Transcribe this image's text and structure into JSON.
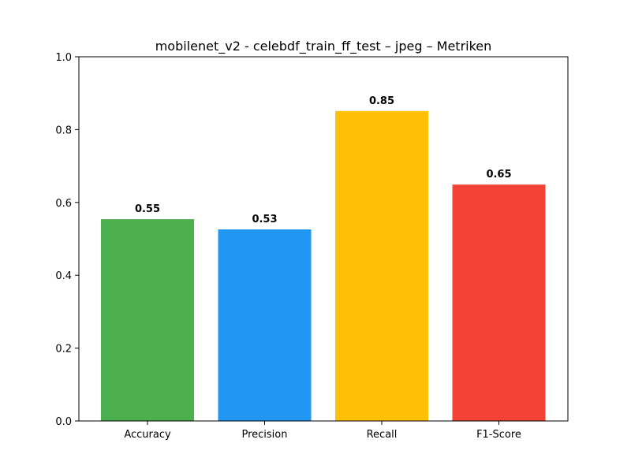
{
  "chart_data": {
    "type": "bar",
    "title": "mobilenet_v2 - celebdf_train_ff_test – jpeg – Metriken",
    "xlabel": "",
    "ylabel": "",
    "categories": [
      "Accuracy",
      "Precision",
      "Recall",
      "F1-Score"
    ],
    "values": [
      0.554,
      0.526,
      0.851,
      0.649
    ],
    "value_labels": [
      "0.55",
      "0.53",
      "0.85",
      "0.65"
    ],
    "colors": [
      "#4caf50",
      "#2196f3",
      "#ffc107",
      "#f44336"
    ],
    "ylim": [
      0,
      1.0
    ],
    "yticks": [
      0.0,
      0.2,
      0.4,
      0.6,
      0.8,
      1.0
    ],
    "ytick_labels": [
      "0.0",
      "0.2",
      "0.4",
      "0.6",
      "0.8",
      "1.0"
    ],
    "grid": false,
    "legend": "none"
  }
}
